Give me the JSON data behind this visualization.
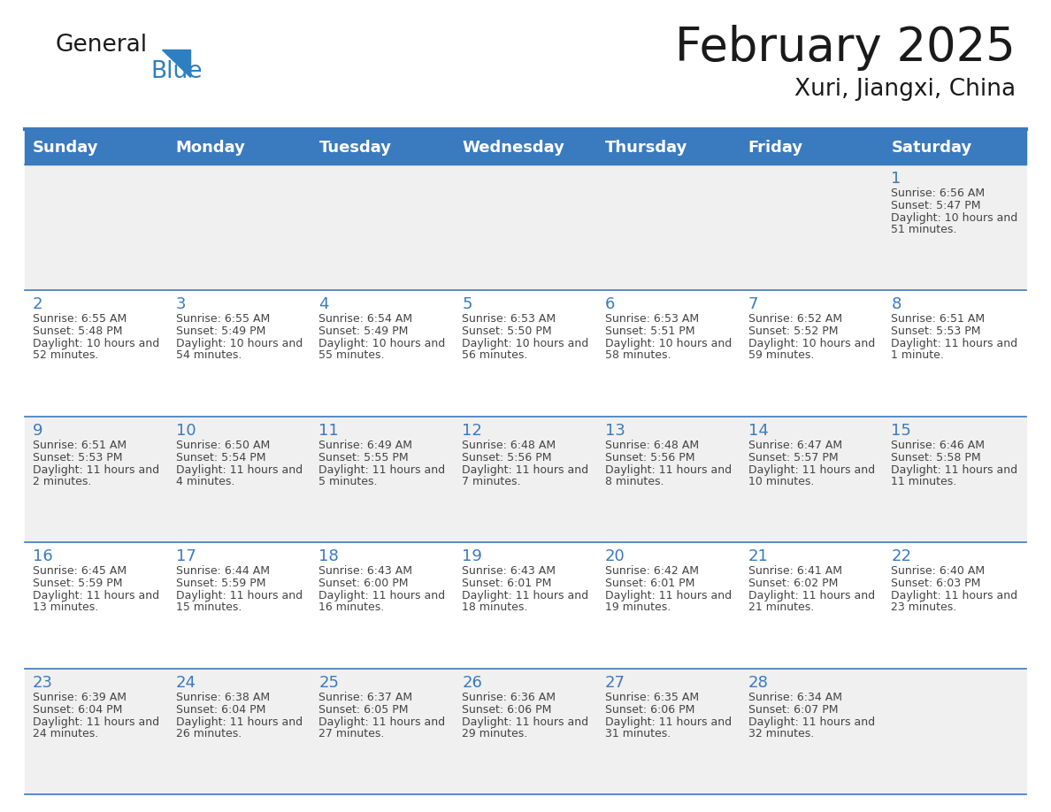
{
  "title": "February 2025",
  "subtitle": "Xuri, Jiangxi, China",
  "header_bg": "#3a7abf",
  "header_text_color": "#ffffff",
  "row_bg_odd": "#f0f0f0",
  "row_bg_even": "#ffffff",
  "day_headers": [
    "Sunday",
    "Monday",
    "Tuesday",
    "Wednesday",
    "Thursday",
    "Friday",
    "Saturday"
  ],
  "cell_text_color": "#444444",
  "day_num_color": "#3a7abf",
  "logo_general_color": "#1a1a1a",
  "logo_blue_color": "#2e7fc1",
  "accent_line_color": "#3a7abf",
  "calendar_data": [
    [
      null,
      null,
      null,
      null,
      null,
      null,
      {
        "day": 1,
        "sunrise": "6:56 AM",
        "sunset": "5:47 PM",
        "daylight": "10 hours and 51 minutes."
      }
    ],
    [
      {
        "day": 2,
        "sunrise": "6:55 AM",
        "sunset": "5:48 PM",
        "daylight": "10 hours and 52 minutes."
      },
      {
        "day": 3,
        "sunrise": "6:55 AM",
        "sunset": "5:49 PM",
        "daylight": "10 hours and 54 minutes."
      },
      {
        "day": 4,
        "sunrise": "6:54 AM",
        "sunset": "5:49 PM",
        "daylight": "10 hours and 55 minutes."
      },
      {
        "day": 5,
        "sunrise": "6:53 AM",
        "sunset": "5:50 PM",
        "daylight": "10 hours and 56 minutes."
      },
      {
        "day": 6,
        "sunrise": "6:53 AM",
        "sunset": "5:51 PM",
        "daylight": "10 hours and 58 minutes."
      },
      {
        "day": 7,
        "sunrise": "6:52 AM",
        "sunset": "5:52 PM",
        "daylight": "10 hours and 59 minutes."
      },
      {
        "day": 8,
        "sunrise": "6:51 AM",
        "sunset": "5:53 PM",
        "daylight": "11 hours and 1 minute."
      }
    ],
    [
      {
        "day": 9,
        "sunrise": "6:51 AM",
        "sunset": "5:53 PM",
        "daylight": "11 hours and 2 minutes."
      },
      {
        "day": 10,
        "sunrise": "6:50 AM",
        "sunset": "5:54 PM",
        "daylight": "11 hours and 4 minutes."
      },
      {
        "day": 11,
        "sunrise": "6:49 AM",
        "sunset": "5:55 PM",
        "daylight": "11 hours and 5 minutes."
      },
      {
        "day": 12,
        "sunrise": "6:48 AM",
        "sunset": "5:56 PM",
        "daylight": "11 hours and 7 minutes."
      },
      {
        "day": 13,
        "sunrise": "6:48 AM",
        "sunset": "5:56 PM",
        "daylight": "11 hours and 8 minutes."
      },
      {
        "day": 14,
        "sunrise": "6:47 AM",
        "sunset": "5:57 PM",
        "daylight": "11 hours and 10 minutes."
      },
      {
        "day": 15,
        "sunrise": "6:46 AM",
        "sunset": "5:58 PM",
        "daylight": "11 hours and 11 minutes."
      }
    ],
    [
      {
        "day": 16,
        "sunrise": "6:45 AM",
        "sunset": "5:59 PM",
        "daylight": "11 hours and 13 minutes."
      },
      {
        "day": 17,
        "sunrise": "6:44 AM",
        "sunset": "5:59 PM",
        "daylight": "11 hours and 15 minutes."
      },
      {
        "day": 18,
        "sunrise": "6:43 AM",
        "sunset": "6:00 PM",
        "daylight": "11 hours and 16 minutes."
      },
      {
        "day": 19,
        "sunrise": "6:43 AM",
        "sunset": "6:01 PM",
        "daylight": "11 hours and 18 minutes."
      },
      {
        "day": 20,
        "sunrise": "6:42 AM",
        "sunset": "6:01 PM",
        "daylight": "11 hours and 19 minutes."
      },
      {
        "day": 21,
        "sunrise": "6:41 AM",
        "sunset": "6:02 PM",
        "daylight": "11 hours and 21 minutes."
      },
      {
        "day": 22,
        "sunrise": "6:40 AM",
        "sunset": "6:03 PM",
        "daylight": "11 hours and 23 minutes."
      }
    ],
    [
      {
        "day": 23,
        "sunrise": "6:39 AM",
        "sunset": "6:04 PM",
        "daylight": "11 hours and 24 minutes."
      },
      {
        "day": 24,
        "sunrise": "6:38 AM",
        "sunset": "6:04 PM",
        "daylight": "11 hours and 26 minutes."
      },
      {
        "day": 25,
        "sunrise": "6:37 AM",
        "sunset": "6:05 PM",
        "daylight": "11 hours and 27 minutes."
      },
      {
        "day": 26,
        "sunrise": "6:36 AM",
        "sunset": "6:06 PM",
        "daylight": "11 hours and 29 minutes."
      },
      {
        "day": 27,
        "sunrise": "6:35 AM",
        "sunset": "6:06 PM",
        "daylight": "11 hours and 31 minutes."
      },
      {
        "day": 28,
        "sunrise": "6:34 AM",
        "sunset": "6:07 PM",
        "daylight": "11 hours and 32 minutes."
      },
      null
    ]
  ]
}
